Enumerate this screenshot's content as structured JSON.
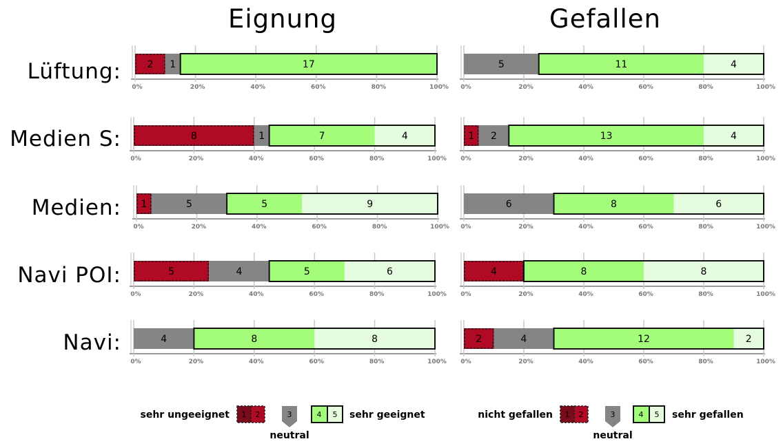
{
  "chart_data": [
    {
      "type": "bar",
      "title": "Eignung",
      "categories": [
        "Lüftung:",
        "Medien S:",
        "Medien:",
        "Navi POI:",
        "Navi:"
      ],
      "series": [
        {
          "name": "1",
          "values": [
            0,
            0,
            0,
            0,
            0
          ]
        },
        {
          "name": "2",
          "values": [
            2,
            8,
            1,
            5,
            0
          ]
        },
        {
          "name": "3",
          "values": [
            1,
            1,
            5,
            4,
            4
          ]
        },
        {
          "name": "4",
          "values": [
            17,
            7,
            5,
            5,
            8
          ]
        },
        {
          "name": "5",
          "values": [
            0,
            4,
            9,
            6,
            8
          ]
        }
      ],
      "xticks": [
        "0%",
        "20%",
        "40%",
        "60%",
        "80%",
        "100%"
      ],
      "xlim": [
        0,
        100
      ],
      "stacked": "percent",
      "legend": {
        "left": "sehr ungeeignet",
        "middle": "neutral",
        "right": "sehr geeignet",
        "placement": "bottom"
      }
    },
    {
      "type": "bar",
      "title": "Gefallen",
      "categories": [
        "Lüftung:",
        "Medien S:",
        "Medien:",
        "Navi POI:",
        "Navi:"
      ],
      "series": [
        {
          "name": "1",
          "values": [
            0,
            0,
            0,
            0,
            0
          ]
        },
        {
          "name": "2",
          "values": [
            0,
            1,
            0,
            4,
            2
          ]
        },
        {
          "name": "3",
          "values": [
            5,
            2,
            6,
            0,
            4
          ]
        },
        {
          "name": "4",
          "values": [
            11,
            13,
            8,
            8,
            12
          ]
        },
        {
          "name": "5",
          "values": [
            4,
            4,
            6,
            8,
            2
          ]
        }
      ],
      "xticks": [
        "0%",
        "20%",
        "40%",
        "60%",
        "80%",
        "100%"
      ],
      "xlim": [
        0,
        100
      ],
      "stacked": "percent",
      "legend": {
        "left": "nicht gefallen",
        "middle": "neutral",
        "right": "sehr gefallen",
        "placement": "bottom"
      }
    }
  ],
  "legend_swatches": [
    "1",
    "2",
    "3",
    "4",
    "5"
  ],
  "colors": {
    "1": "#7a0a1c",
    "2": "#b00a24",
    "3": "#858585",
    "4": "#a3fc7a",
    "5": "#e6fce0"
  }
}
